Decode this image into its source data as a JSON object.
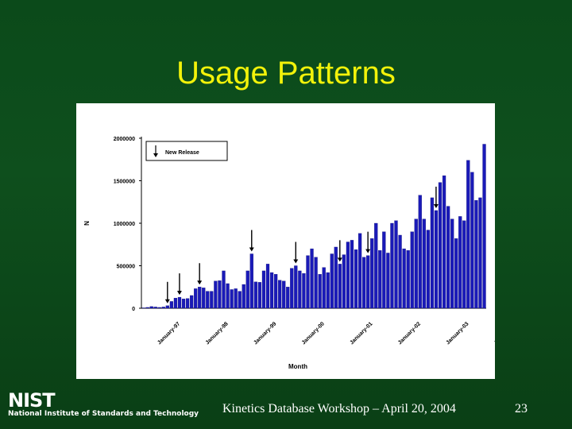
{
  "slide": {
    "title": "Usage Patterns",
    "footer": "Kinetics Database Workshop – April 20, 2004",
    "page_number": "23",
    "org_logo": "NIST",
    "org_name": "National Institute of Standards and Technology"
  },
  "chart_data": {
    "type": "bar",
    "title": "",
    "xlabel": "Month",
    "ylabel": "N",
    "ylim": [
      0,
      2000000
    ],
    "y_ticks": [
      "0",
      "500000",
      "1000000",
      "1500000",
      "2000000"
    ],
    "x_tick_labels": [
      "January-97",
      "January-98",
      "January-99",
      "January-00",
      "January-01",
      "January-02",
      "January-03",
      "January-04"
    ],
    "legend": {
      "label": "New Release",
      "position": "top-left"
    },
    "bar_color": "#1a1ab8",
    "values": [
      5000,
      10000,
      20000,
      15000,
      10000,
      15000,
      30000,
      80000,
      120000,
      130000,
      110000,
      115000,
      150000,
      230000,
      250000,
      240000,
      200000,
      200000,
      320000,
      325000,
      440000,
      290000,
      220000,
      230000,
      200000,
      280000,
      440000,
      640000,
      310000,
      305000,
      440000,
      520000,
      420000,
      400000,
      330000,
      320000,
      250000,
      470000,
      500000,
      440000,
      410000,
      620000,
      700000,
      600000,
      400000,
      480000,
      420000,
      640000,
      720000,
      520000,
      630000,
      780000,
      800000,
      690000,
      880000,
      600000,
      620000,
      820000,
      1000000,
      680000,
      900000,
      650000,
      1000000,
      1030000,
      860000,
      700000,
      680000,
      900000,
      1050000,
      1330000,
      1050000,
      920000,
      1300000,
      1150000,
      1480000,
      1560000,
      1200000,
      1050000,
      820000,
      1080000,
      1030000,
      1740000,
      1600000,
      1270000,
      1300000,
      1930000
    ],
    "release_arrow_indices": [
      6,
      9,
      14,
      27,
      38,
      49,
      56,
      73
    ]
  }
}
